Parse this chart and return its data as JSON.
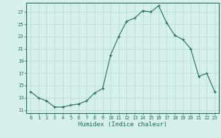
{
  "x": [
    0,
    1,
    2,
    3,
    4,
    5,
    6,
    7,
    8,
    9,
    10,
    11,
    12,
    13,
    14,
    15,
    16,
    17,
    18,
    19,
    20,
    21,
    22,
    23
  ],
  "y": [
    14.0,
    13.0,
    12.5,
    11.5,
    11.5,
    11.8,
    12.0,
    12.5,
    13.8,
    14.5,
    20.0,
    23.0,
    25.5,
    26.0,
    27.2,
    27.0,
    28.0,
    25.2,
    23.2,
    22.5,
    21.0,
    16.5,
    17.0,
    14.0
  ],
  "line_color": "#1a6b5a",
  "marker": "+",
  "background_color": "#d8f0ec",
  "grid_color": "#b0d8d0",
  "xlabel": "Humidex (Indice chaleur)",
  "yticks": [
    11,
    13,
    15,
    17,
    19,
    21,
    23,
    25,
    27
  ],
  "xticks": [
    0,
    1,
    2,
    3,
    4,
    5,
    6,
    7,
    8,
    9,
    10,
    11,
    12,
    13,
    14,
    15,
    16,
    17,
    18,
    19,
    20,
    21,
    22,
    23
  ],
  "ylim": [
    10.5,
    28.5
  ],
  "xlim": [
    -0.5,
    23.5
  ],
  "tick_fontsize": 5.0,
  "xlabel_fontsize": 6.5
}
